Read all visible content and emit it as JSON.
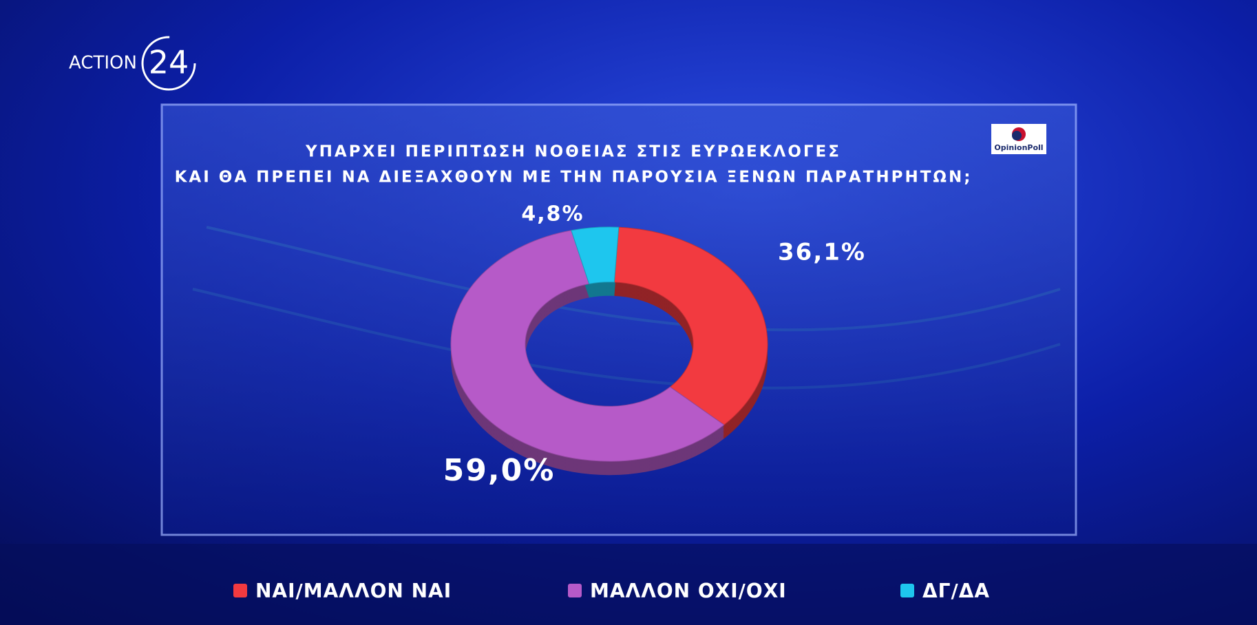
{
  "header": {
    "channel": "ACTION",
    "channel_number": "24",
    "pollster": "OpinionPoll"
  },
  "chart_data": {
    "type": "pie",
    "title": [
      "ΥΠΑΡΧΕΙ ΠΕΡΙΠΤΩΣΗ ΝΟΘΕΙΑΣ ΣΤΙΣ ΕΥΡΩΕΚΛΟΓΕΣ",
      "ΚΑΙ ΘΑ ΠΡΕΠΕΙ ΝΑ ΔΙΕΞΑΧΘΟΥΝ ΜΕ ΤΗΝ ΠΑΡΟΥΣΙΑ ΞΕΝΩΝ ΠΑΡΑΤΗΡΗΤΩΝ;"
    ],
    "categories": [
      "ΝΑΙ/ΜΑΛΛΟΝ ΝΑΙ",
      "ΜΑΛΛΟΝ ΟΧΙ/ΟΧΙ",
      "ΔΓ/ΔΑ"
    ],
    "values": [
      36.1,
      59.0,
      4.8
    ],
    "value_labels": [
      "36,1%",
      "59,0%",
      "4,8%"
    ],
    "colors": [
      "#f23a40",
      "#b65ac8",
      "#1ec6ee"
    ],
    "donut": true,
    "legend": "bottom"
  }
}
